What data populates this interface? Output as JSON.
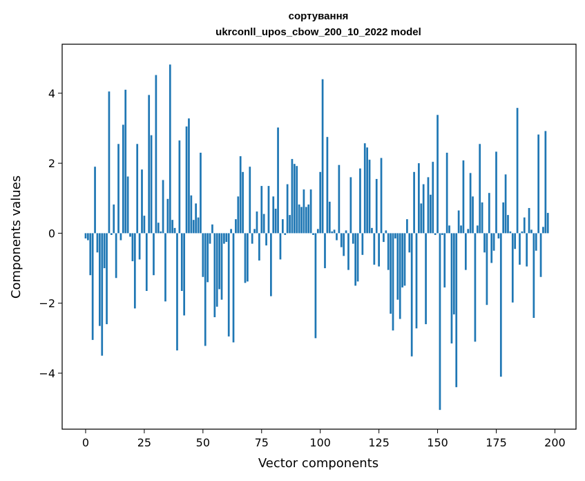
{
  "chart_data": {
    "type": "bar",
    "title": "сортування",
    "subtitle": "ukrconll_upos_cbow_200_10_2022 model",
    "xlabel": "Vector components",
    "ylabel": "Components values",
    "xlim": [
      -10,
      209
    ],
    "ylim": [
      -5.6,
      5.4
    ],
    "xticks": [
      0,
      25,
      50,
      75,
      100,
      125,
      150,
      175,
      200
    ],
    "xtick_labels": [
      "0",
      "25",
      "50",
      "75",
      "100",
      "125",
      "150",
      "175",
      "200"
    ],
    "yticks": [
      -4,
      -2,
      0,
      2,
      4
    ],
    "ytick_labels": [
      "−4",
      "−2",
      "0",
      "2",
      "4"
    ],
    "grid": false,
    "bar_color": "#1f77b4",
    "values": [
      -0.15,
      -0.2,
      -1.2,
      -3.05,
      1.9,
      -0.55,
      -2.65,
      -3.5,
      -1.0,
      -2.6,
      4.05,
      -0.05,
      0.82,
      -1.28,
      2.55,
      -0.2,
      3.1,
      4.1,
      1.62,
      -0.1,
      -0.8,
      -2.15,
      2.55,
      -0.75,
      1.82,
      0.5,
      -1.65,
      3.95,
      2.8,
      -1.2,
      4.52,
      0.3,
      0.05,
      1.52,
      -1.95,
      0.98,
      4.82,
      0.38,
      0.15,
      -3.35,
      2.65,
      -1.65,
      -2.35,
      3.05,
      3.28,
      1.08,
      0.38,
      0.85,
      0.45,
      2.3,
      -1.25,
      -3.22,
      -1.4,
      -0.3,
      0.25,
      -2.4,
      -2.1,
      -1.6,
      -1.9,
      -0.3,
      -0.25,
      -2.95,
      0.12,
      -3.12,
      0.4,
      1.05,
      2.2,
      1.75,
      -1.42,
      -1.38,
      1.9,
      -0.3,
      0.12,
      0.62,
      -0.78,
      1.35,
      0.55,
      -0.35,
      1.35,
      -1.8,
      1.05,
      0.7,
      3.02,
      -0.75,
      0.4,
      -0.05,
      1.4,
      0.52,
      2.12,
      1.98,
      1.92,
      0.82,
      0.75,
      1.25,
      0.75,
      0.82,
      1.25,
      -0.05,
      -3.0,
      0.12,
      1.75,
      4.4,
      -1.0,
      2.75,
      0.9,
      0.05,
      0.1,
      -0.2,
      1.95,
      -0.4,
      -0.65,
      0.08,
      -1.05,
      1.6,
      -0.3,
      -1.5,
      -1.38,
      1.85,
      -0.62,
      2.57,
      2.45,
      2.1,
      0.15,
      -0.9,
      1.55,
      -0.95,
      2.15,
      -0.25,
      0.08,
      -1.05,
      -2.3,
      -2.78,
      -0.15,
      -1.9,
      -2.45,
      -1.55,
      -1.5,
      0.4,
      -0.55,
      -3.52,
      1.75,
      -2.72,
      2.0,
      0.85,
      1.4,
      -2.6,
      1.6,
      1.1,
      2.04,
      -0.05,
      3.38,
      -5.05,
      -0.05,
      -1.55,
      2.3,
      0.22,
      -3.15,
      -2.32,
      -4.4,
      0.65,
      0.22,
      2.08,
      -1.05,
      0.12,
      1.72,
      1.05,
      -3.1,
      0.22,
      2.55,
      0.88,
      -0.55,
      -2.05,
      1.15,
      -0.85,
      -0.5,
      2.33,
      -0.15,
      -4.1,
      0.88,
      1.68,
      0.52,
      0.05,
      -1.98,
      -0.45,
      3.58,
      -0.9,
      0.05,
      0.45,
      -0.95,
      0.72,
      0.1,
      -2.42,
      -0.5,
      2.82,
      -1.25,
      0.18,
      2.92,
      0.58
    ]
  }
}
